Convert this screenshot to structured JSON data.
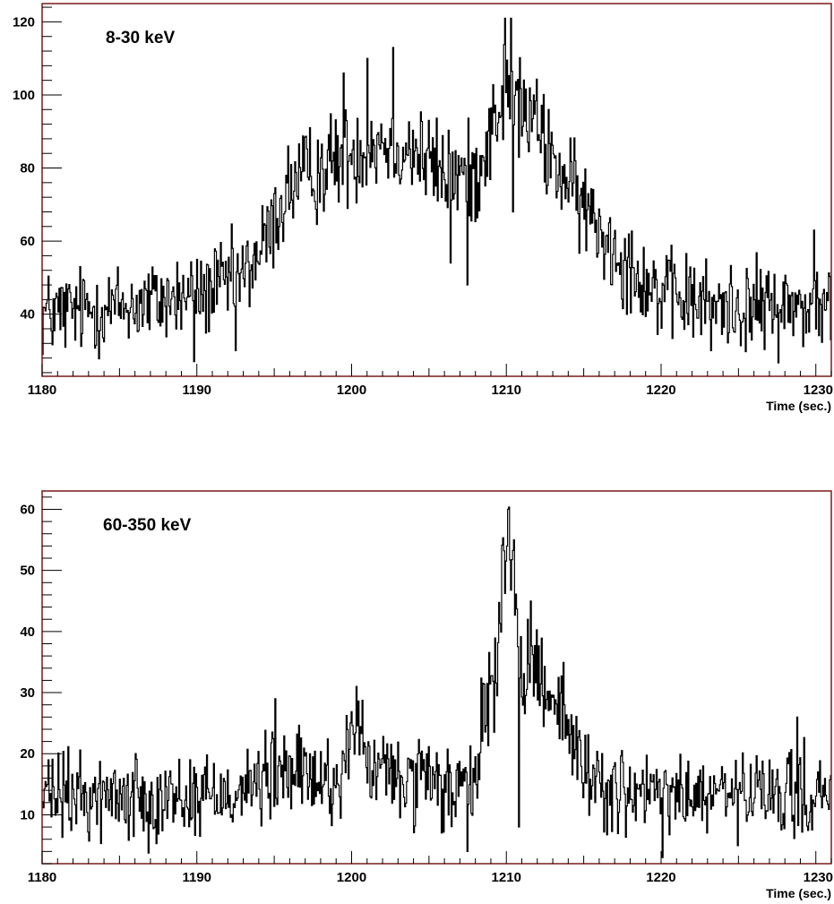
{
  "chart_data": [
    {
      "type": "line",
      "style": "histogram-step",
      "label": "8-30 keV",
      "xlabel": "Time (sec.)",
      "ylabel": "",
      "xlim": [
        1180,
        1231
      ],
      "ylim": [
        23,
        125
      ],
      "xticks": [
        1180,
        1190,
        1200,
        1210,
        1220,
        1230
      ],
      "yticks": [
        40,
        60,
        80,
        100,
        120
      ],
      "bin_width": 0.064,
      "grid": false,
      "series": [
        {
          "profile_x": [
            1180,
            1185,
            1190,
            1193,
            1194.5,
            1196,
            1199,
            1202,
            1204,
            1206,
            1208,
            1210,
            1212,
            1214,
            1217,
            1220,
            1225,
            1231
          ],
          "profile_y": [
            40,
            42,
            45,
            50,
            60,
            75,
            82,
            88,
            85,
            78,
            78,
            102,
            90,
            75,
            58,
            45,
            42,
            42
          ],
          "noise_amplitude": 6,
          "spikes": [
            {
              "x": 1189.8,
              "y": 27
            },
            {
              "x": 1192.3,
              "y": 58
            },
            {
              "x": 1192.5,
              "y": 30
            },
            {
              "x": 1199.5,
              "y": 106
            },
            {
              "x": 1201.0,
              "y": 110
            },
            {
              "x": 1202.7,
              "y": 113
            },
            {
              "x": 1206.4,
              "y": 54
            },
            {
              "x": 1207.5,
              "y": 48
            },
            {
              "x": 1209.9,
              "y": 121
            },
            {
              "x": 1210.3,
              "y": 121
            },
            {
              "x": 1210.4,
              "y": 68
            },
            {
              "x": 1211.8,
              "y": 100
            },
            {
              "x": 1223.2,
              "y": 30
            },
            {
              "x": 1229.9,
              "y": 63
            },
            {
              "x": 1231.0,
              "y": 33
            }
          ]
        }
      ]
    },
    {
      "type": "line",
      "style": "histogram-step",
      "label": "60-350 keV",
      "xlabel": "Time (sec.)",
      "ylabel": "",
      "xlim": [
        1180,
        1231
      ],
      "ylim": [
        2,
        63
      ],
      "xticks": [
        1180,
        1190,
        1200,
        1210,
        1220,
        1230
      ],
      "yticks": [
        10,
        20,
        30,
        40,
        50,
        60
      ],
      "bin_width": 0.064,
      "grid": false,
      "series": [
        {
          "profile_x": [
            1180,
            1190,
            1194,
            1196,
            1199,
            1200.3,
            1201,
            1203,
            1206,
            1208,
            1208.5,
            1209.3,
            1209.8,
            1210.2,
            1210.6,
            1211.0,
            1211.5,
            1212.5,
            1213.5,
            1214.5,
            1216,
            1218,
            1231
          ],
          "profile_y": [
            13,
            13,
            15,
            17,
            15,
            25,
            18,
            16,
            14,
            14,
            28,
            32,
            50,
            56,
            42,
            26,
            36,
            32,
            28,
            20,
            15,
            13,
            13
          ],
          "noise_amplitude": 3.5,
          "spikes": [
            {
              "x": 1195.1,
              "y": 29
            },
            {
              "x": 1200.3,
              "y": 31
            },
            {
              "x": 1207.5,
              "y": 4
            },
            {
              "x": 1210.1,
              "y": 60
            },
            {
              "x": 1210.5,
              "y": 55
            },
            {
              "x": 1210.8,
              "y": 8
            },
            {
              "x": 1211.4,
              "y": 42
            },
            {
              "x": 1220.1,
              "y": 3
            },
            {
              "x": 1228.8,
              "y": 26
            }
          ]
        }
      ]
    }
  ]
}
